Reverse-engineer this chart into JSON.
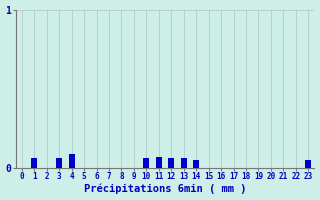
{
  "hours": [
    0,
    1,
    2,
    3,
    4,
    5,
    6,
    7,
    8,
    9,
    10,
    11,
    12,
    13,
    14,
    15,
    16,
    17,
    18,
    19,
    20,
    21,
    22,
    23
  ],
  "values": [
    0,
    0.06,
    0.0,
    0.06,
    0.09,
    0,
    0,
    0,
    0,
    0,
    0.06,
    0.07,
    0.06,
    0.06,
    0.05,
    0,
    0,
    0,
    0,
    0,
    0,
    0,
    0,
    0.05
  ],
  "bar_color": "#0000cc",
  "bg_color": "#ceeee8",
  "grid_color": "#b0cccc",
  "axis_color": "#777777",
  "text_color": "#0000bb",
  "xlabel": "Précipitations 6min ( mm )",
  "ylim": [
    0,
    1.0
  ],
  "yticks": [
    0,
    1
  ],
  "xtick_labels": [
    "0",
    "1",
    "2",
    "3",
    "4",
    "5",
    "6",
    "7",
    "8",
    "9",
    "10",
    "11",
    "12",
    "13",
    "14",
    "15",
    "16",
    "17",
    "18",
    "19",
    "20",
    "21",
    "22",
    "23"
  ],
  "bar_width": 0.5
}
